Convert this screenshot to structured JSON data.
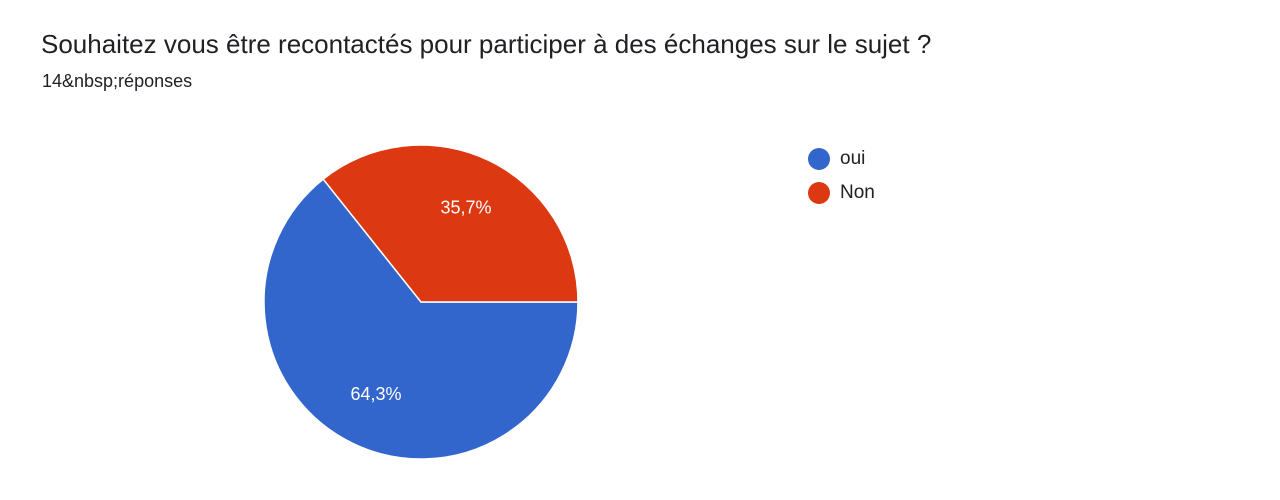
{
  "header": {
    "title": "Souhaitez vous être recontactés pour participer à des échanges sur le sujet ?",
    "response_count": "14&nbsp;réponses"
  },
  "chart_data": {
    "type": "pie",
    "categories": [
      "oui",
      "Non"
    ],
    "values": [
      64.3,
      35.7
    ],
    "value_labels": [
      "64,3%",
      "35,7%"
    ],
    "colors": [
      "#3366cc",
      "#dc3912"
    ],
    "legend_position": "right"
  }
}
